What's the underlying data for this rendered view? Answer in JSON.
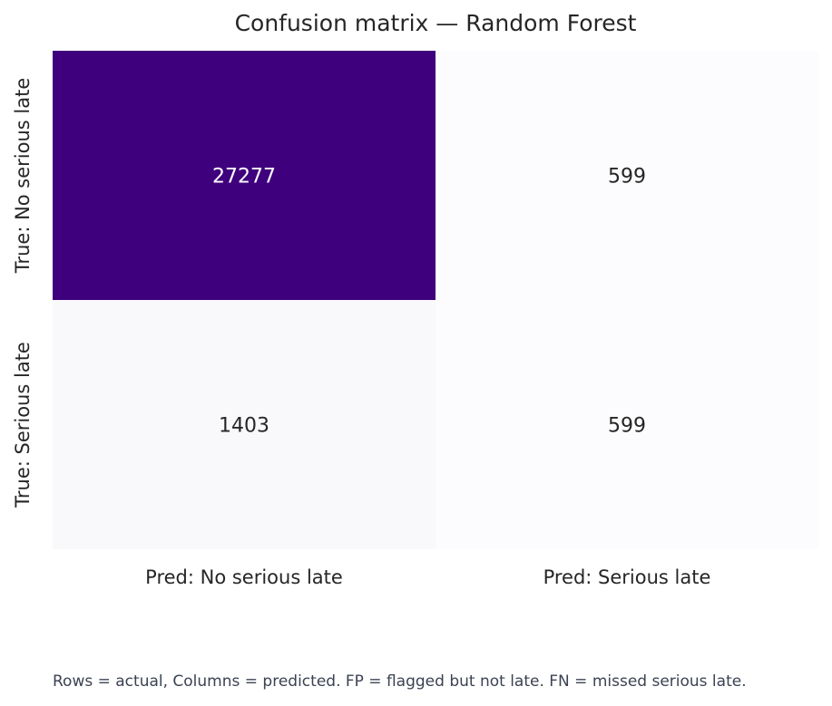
{
  "chart_data": {
    "type": "heatmap",
    "title": "Confusion matrix — Random Forest",
    "row_labels": [
      "True: No serious late",
      "True: Serious late"
    ],
    "col_labels": [
      "Pred: No serious late",
      "Pred: Serious late"
    ],
    "values": [
      [
        27277,
        599
      ],
      [
        1403,
        599
      ]
    ],
    "colormap": "Purples",
    "colorbar": false
  },
  "caption": "Rows = actual, Columns = predicted. FP = flagged but not late. FN = missed serious late.",
  "colors": {
    "low": "#fcfbfd",
    "high": "#3f007d",
    "text_dark": "#262626",
    "text_light": "#ffffff"
  }
}
